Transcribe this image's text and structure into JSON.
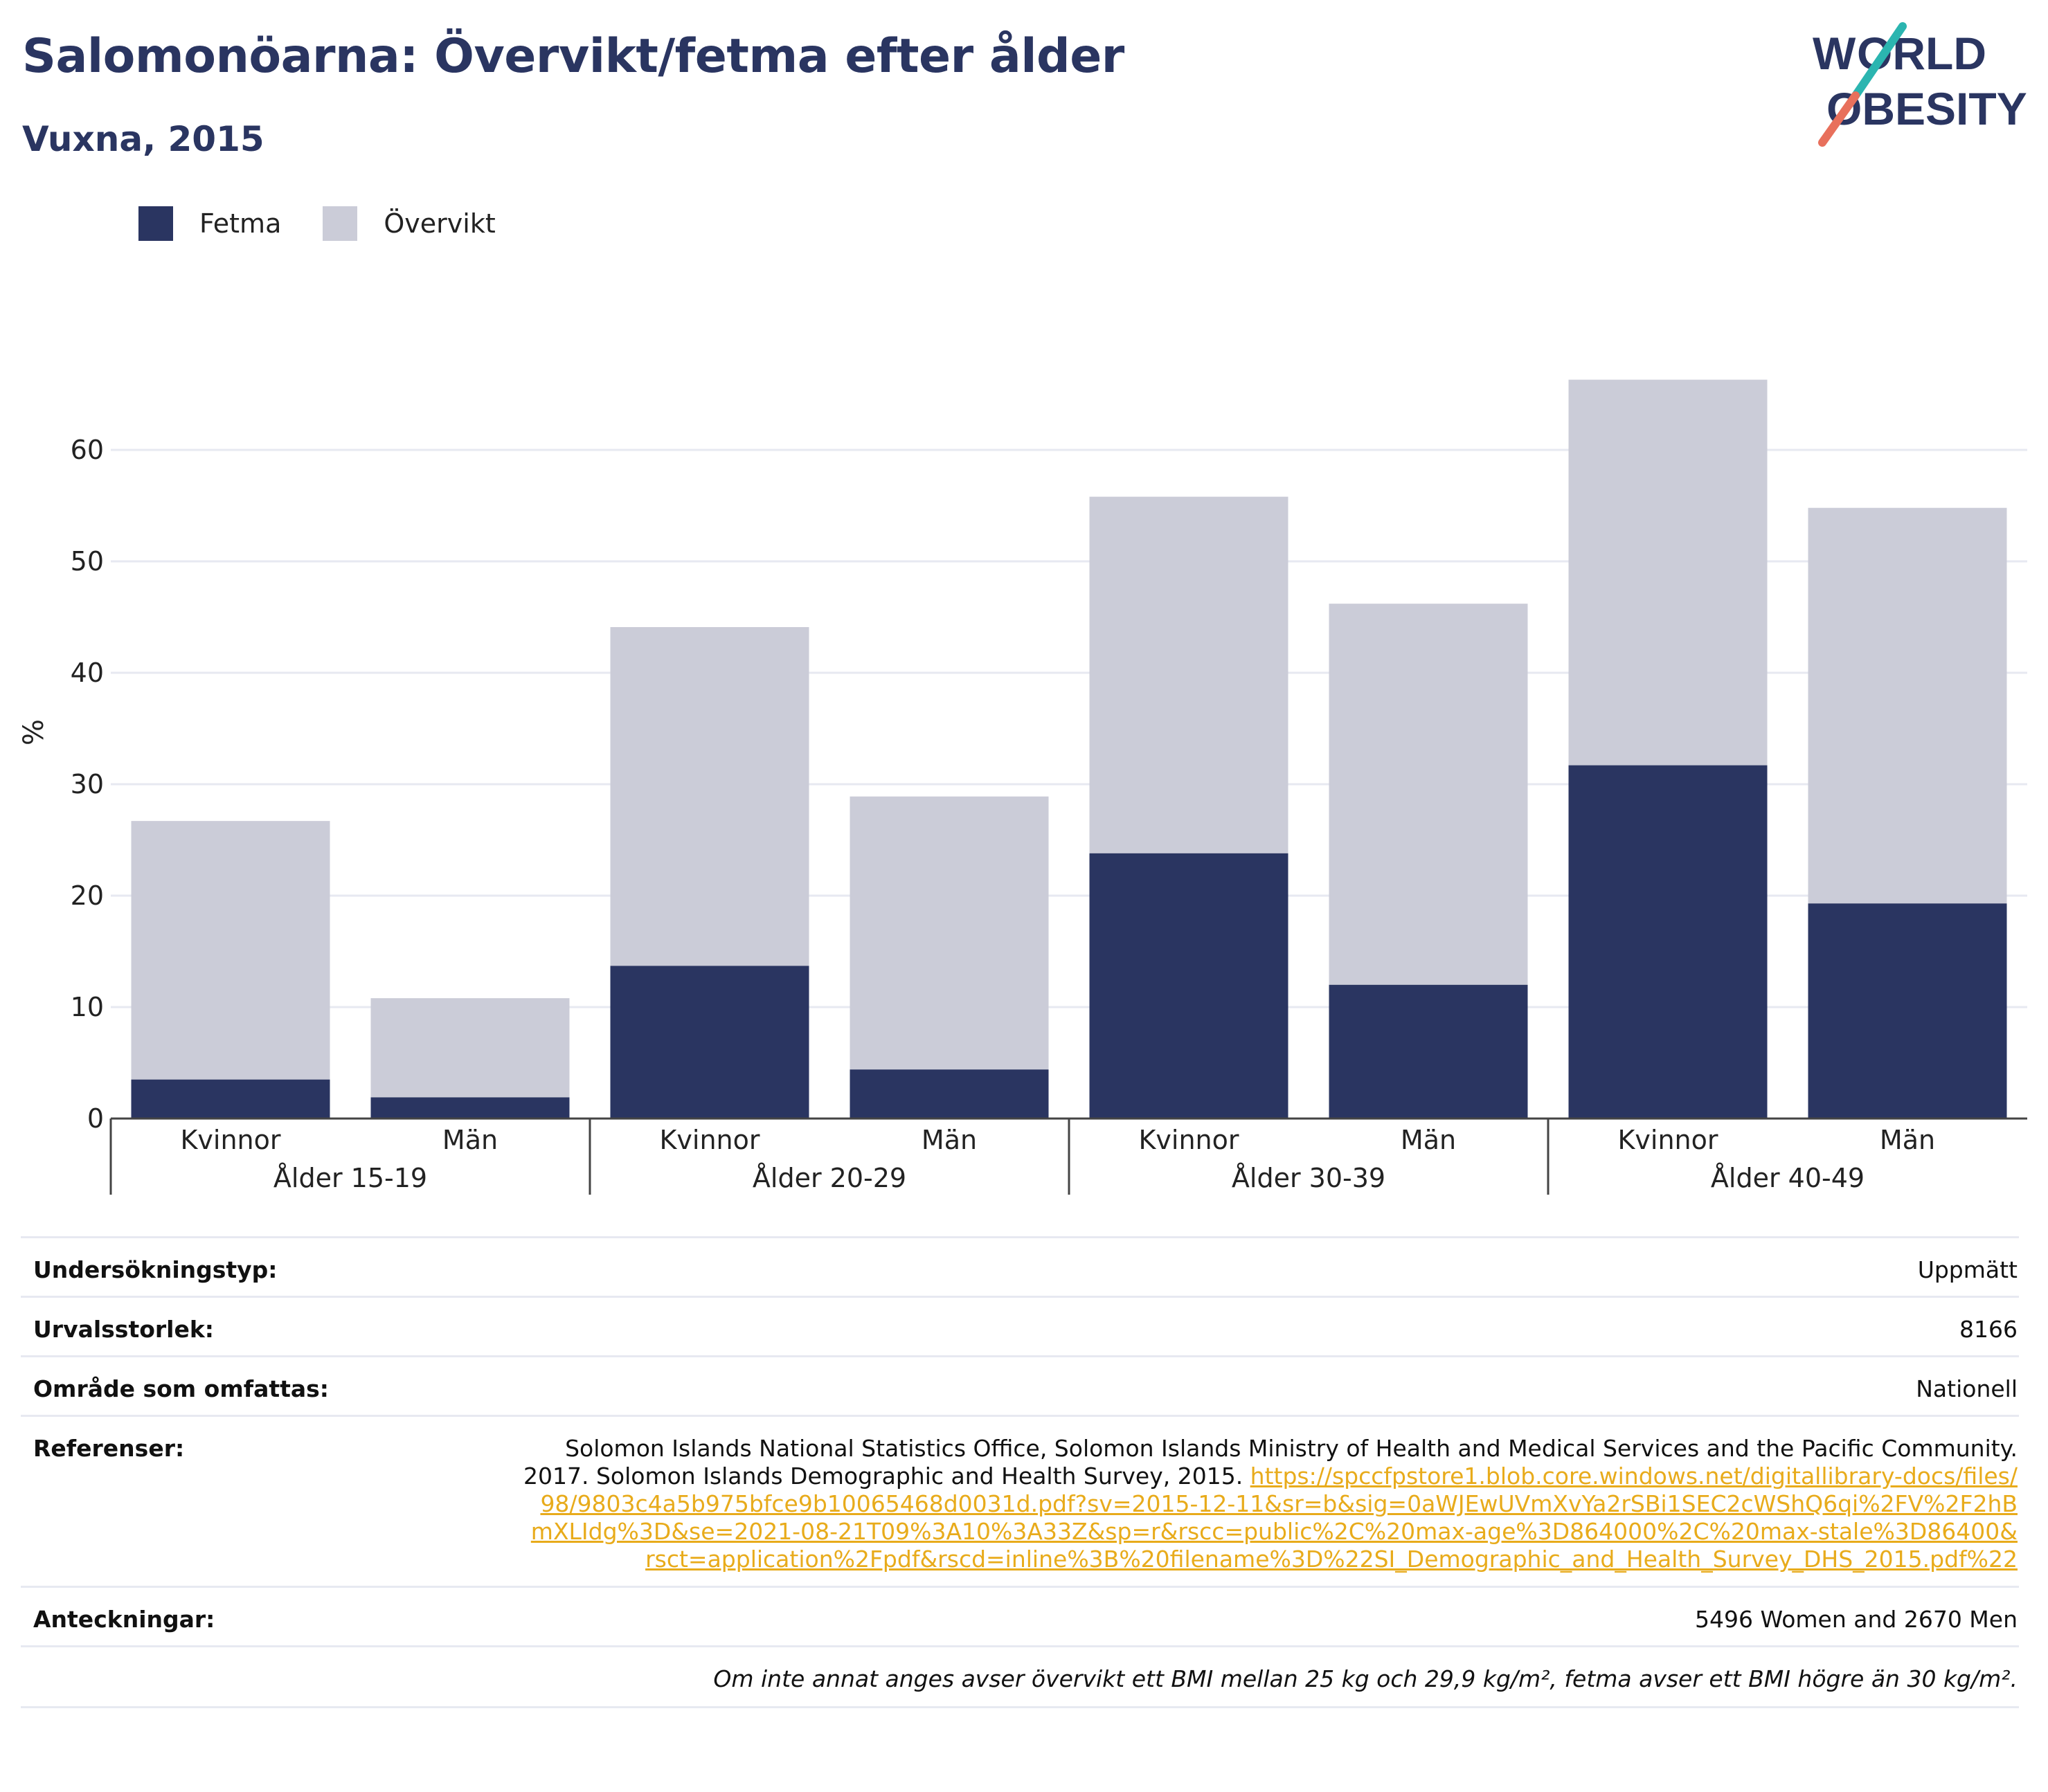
{
  "header": {
    "title": "Salomonöarna: Övervikt/fetma efter ålder",
    "subtitle": "Vuxna, 2015",
    "logo_line1": "WORLD",
    "logo_line2": "OBESITY"
  },
  "colors": {
    "fetma": "#2a3561",
    "overvikt": "#cbccd8",
    "title": "#2a3561",
    "link": "#e8ab1b"
  },
  "legend": [
    {
      "label": "Fetma",
      "color": "#2a3561"
    },
    {
      "label": "Övervikt",
      "color": "#cbccd8"
    }
  ],
  "chart_data": {
    "type": "bar",
    "stacked": true,
    "ylabel": "%",
    "ylim": [
      0,
      70
    ],
    "yticks": [
      0,
      10,
      20,
      30,
      40,
      50,
      60
    ],
    "grid": true,
    "groups": [
      "Ålder 15-19",
      "Ålder 20-29",
      "Ålder 30-39",
      "Ålder 40-49"
    ],
    "categories": [
      "Kvinnor",
      "Män",
      "Kvinnor",
      "Män",
      "Kvinnor",
      "Män",
      "Kvinnor",
      "Män"
    ],
    "series": [
      {
        "name": "Fetma",
        "values": [
          3.5,
          1.9,
          13.7,
          4.4,
          23.8,
          12.0,
          31.7,
          19.3
        ]
      },
      {
        "name": "Övervikt",
        "values": [
          23.2,
          8.9,
          30.4,
          24.5,
          32.0,
          34.2,
          34.6,
          35.5
        ]
      }
    ],
    "totals": [
      26.7,
      10.8,
      44.1,
      28.9,
      55.8,
      46.2,
      66.3,
      54.8
    ]
  },
  "info": {
    "survey_type_label": "Undersökningstyp:",
    "survey_type_value": "Uppmätt",
    "sample_size_label": "Urvalsstorlek:",
    "sample_size_value": "8166",
    "area_label": "Område som omfattas:",
    "area_value": "Nationell",
    "references_label": "Referenser:",
    "references_text": "Solomon Islands National Statistics Office, Solomon Islands Ministry of Health and Medical Services and the Pacific Community. 2017. Solomon Islands Demographic and Health Survey, 2015. ",
    "references_link": "https://spccfpstore1.blob.core.windows.net/digitallibrary-docs/files/98/9803c4a5b975bfce9b10065468d0031d.pdf?sv=2015-12-11&sr=b&sig=0aWJEwUVmXvYa2rSBi1SEC2cWShQ6qi%2FV%2F2hBmXLIdg%3D&se=2021-08-21T09%3A10%3A33Z&sp=r&rscc=public%2C%20max-age%3D864000%2C%20max-stale%3D86400&rsct=application%2Fpdf&rscd=inline%3B%20filename%3D%22SI_Demographic_and_Health_Survey_DHS_2015.pdf%22",
    "notes_label": "Anteckningar:",
    "notes_value": "5496 Women and 2670 Men",
    "footnote": "Om inte annat anges avser övervikt ett BMI mellan 25 kg och 29,9 kg/m², fetma avser ett BMI högre än 30 kg/m²."
  }
}
